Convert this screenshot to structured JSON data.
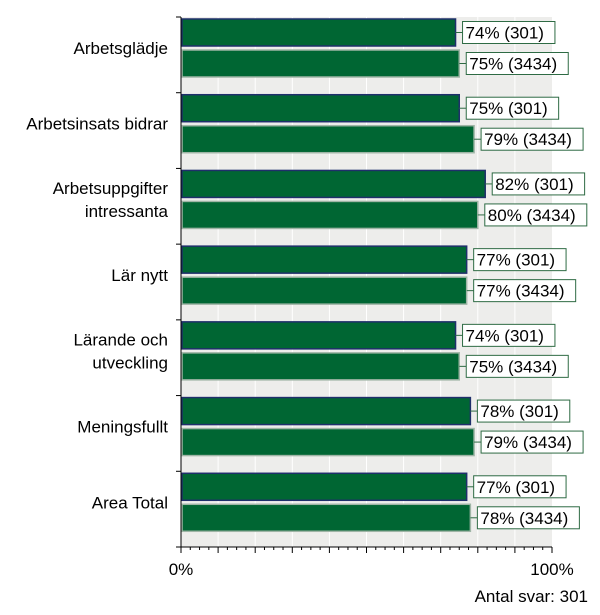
{
  "chart_data": {
    "type": "bar",
    "orientation": "horizontal",
    "categories": [
      "Arbetsglädje",
      "Arbetsinsats bidrar",
      "Arbetsuppgifter intressanta",
      "Lär nytt",
      "Lärande och utveckling",
      "Meningsfullt",
      "Area Total"
    ],
    "category_lines": [
      [
        "Arbetsglädje"
      ],
      [
        "Arbetsinsats bidrar"
      ],
      [
        "Arbetsuppgifter",
        "intressanta"
      ],
      [
        "Lär nytt"
      ],
      [
        "Lärande och",
        "utveckling"
      ],
      [
        "Meningsfullt"
      ],
      [
        "Area Total"
      ]
    ],
    "series": [
      {
        "values": [
          74,
          75,
          82,
          77,
          74,
          78,
          77
        ],
        "labels": [
          "74% (301)",
          "75% (301)",
          "82% (301)",
          "77% (301)",
          "74% (301)",
          "78% (301)",
          "77% (301)"
        ],
        "color": "#006633",
        "border": "#1f2f6b"
      },
      {
        "values": [
          75,
          79,
          80,
          77,
          75,
          79,
          78
        ],
        "labels": [
          "75% (3434)",
          "79% (3434)",
          "80% (3434)",
          "77% (3434)",
          "75% (3434)",
          "79% (3434)",
          "78% (3434)"
        ],
        "color": "#006633",
        "border": "#9fb5a6"
      }
    ],
    "xlim": [
      0,
      100
    ],
    "x_tick_labels": [
      "0%",
      "100%"
    ],
    "grid": true,
    "plot_background": "#ededeb"
  },
  "footer": {
    "respondents": "Antal svar: 301"
  }
}
